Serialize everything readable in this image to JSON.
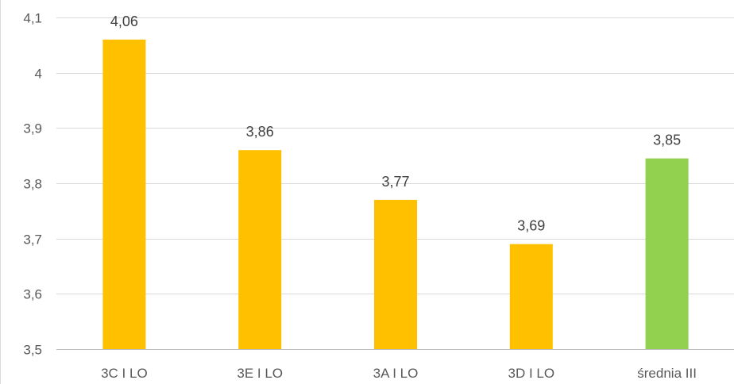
{
  "chart_data": {
    "type": "bar",
    "title": "",
    "xlabel": "",
    "ylabel": "",
    "categories": [
      "3C I LO",
      "3E I LO",
      "3A I LO",
      "3D I LO",
      "średnia III"
    ],
    "values": [
      4.06,
      3.86,
      3.77,
      3.69,
      3.845
    ],
    "value_labels": [
      "4,06",
      "3,86",
      "3,77",
      "3,69",
      "3,85"
    ],
    "bar_colors": [
      "#FFC000",
      "#FFC000",
      "#FFC000",
      "#FFC000",
      "#92D050"
    ],
    "ylim": [
      3.5,
      4.1
    ],
    "yticks": [
      3.5,
      3.6,
      3.7,
      3.8,
      3.9,
      4.0,
      4.1
    ],
    "ytick_labels": [
      "3,5",
      "3,6",
      "3,7",
      "3,8",
      "3,9",
      "4",
      "4,1"
    ],
    "grid": true,
    "legend": "none"
  }
}
